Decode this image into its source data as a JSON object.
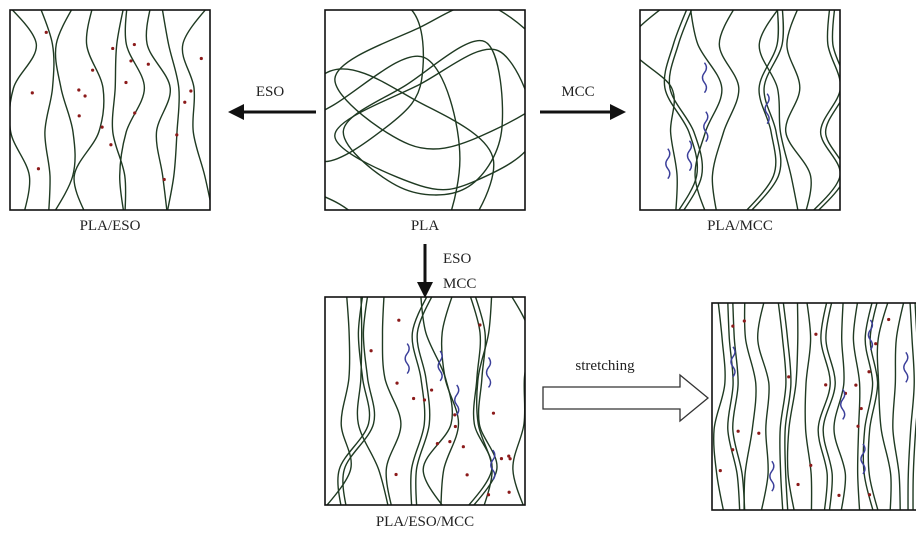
{
  "panel_labels": [
    "PLA/ESO",
    "PLA",
    "PLA/MCC",
    "PLA/ESO/MCC"
  ],
  "arrows": {
    "left": "ESO",
    "right": "MCC",
    "down": [
      "ESO",
      "MCC"
    ],
    "stretch": "stretching"
  }
}
